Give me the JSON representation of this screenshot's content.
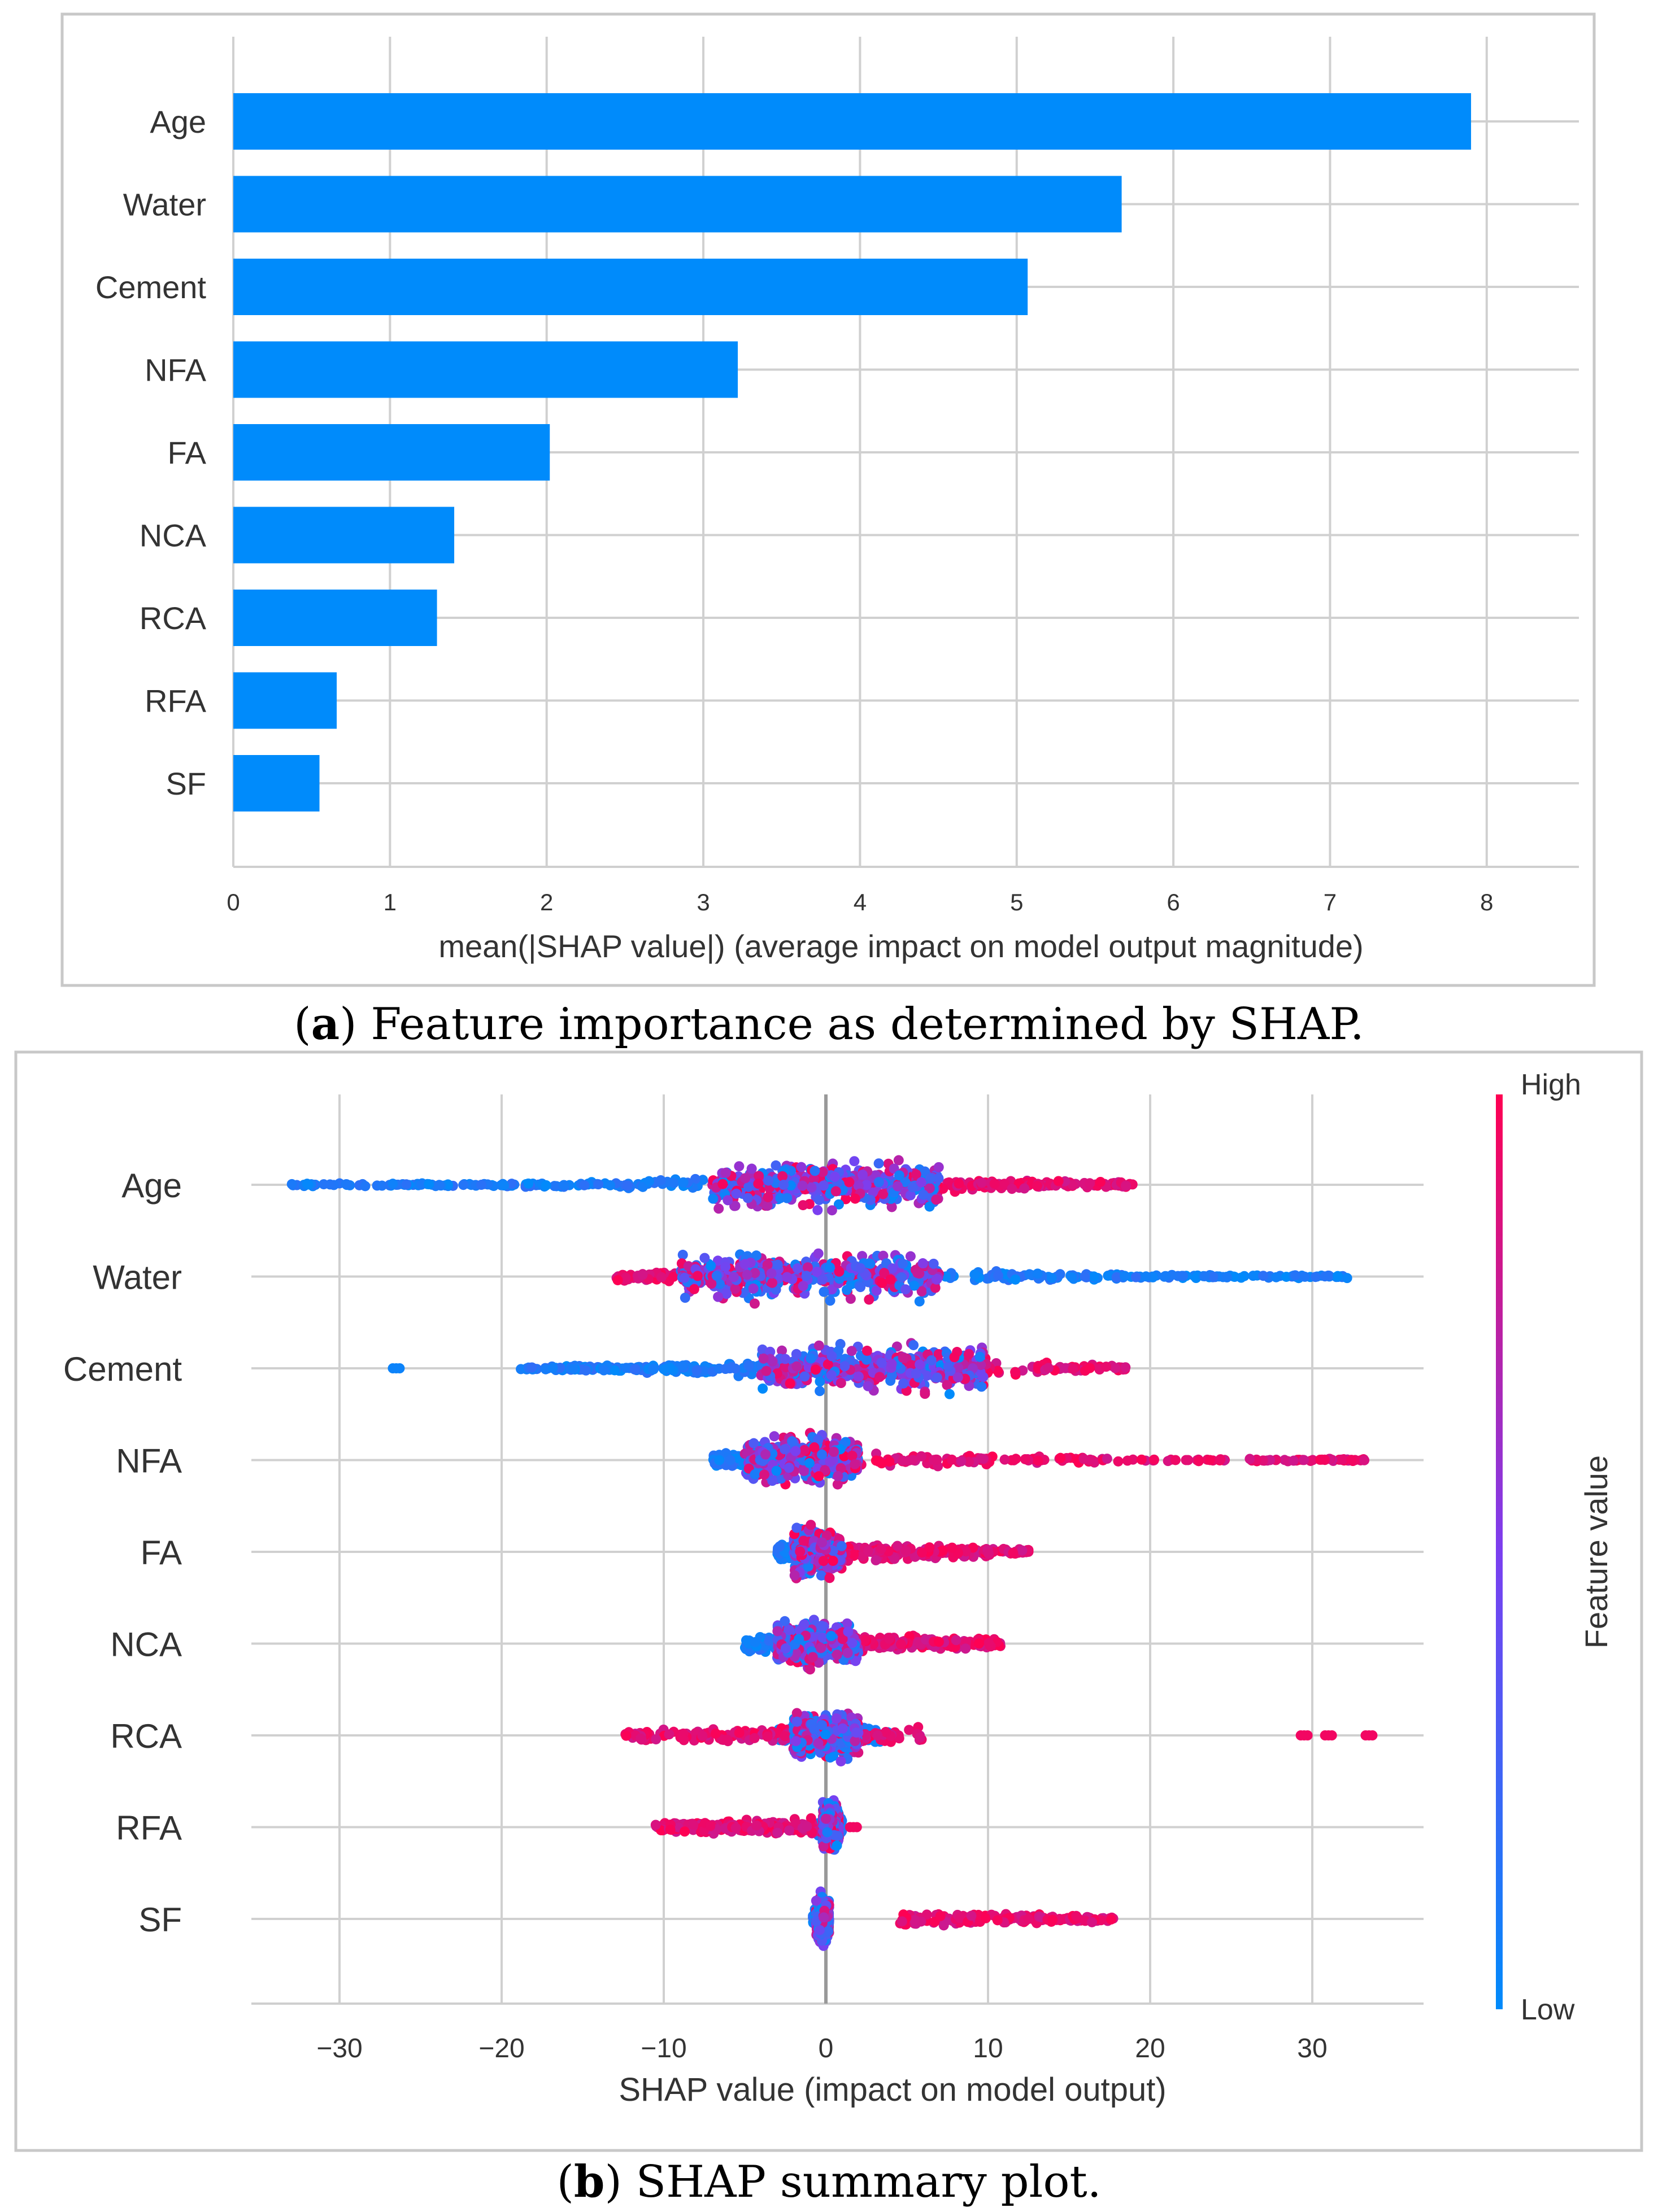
{
  "panel_a": {
    "caption_letter": "a",
    "caption_text": " Feature importance as determined by SHAP."
  },
  "panel_b": {
    "caption_letter": "b",
    "caption_text": " SHAP summary plot."
  },
  "colors": {
    "bar": "#008bfb",
    "low": "#008bfb",
    "high": "#ff0052",
    "grid": "#d0d0d0",
    "frame": "#c8c8c8"
  },
  "chart_data": [
    {
      "type": "bar",
      "orientation": "horizontal",
      "title": "",
      "categories": [
        "Age",
        "Water",
        "Cement",
        "NFA",
        "FA",
        "NCA",
        "RCA",
        "RFA",
        "SF"
      ],
      "values": [
        7.9,
        5.67,
        5.07,
        3.22,
        2.02,
        1.41,
        1.3,
        0.66,
        0.55
      ],
      "xlabel": "mean(|SHAP value|) (average impact on model output magnitude)",
      "ylabel": "",
      "xlim": [
        0,
        8.3
      ],
      "xticks": [
        "0",
        "1",
        "2",
        "3",
        "4",
        "5",
        "6",
        "7",
        "8"
      ],
      "grid": true
    },
    {
      "type": "scatter",
      "subtype": "beeswarm",
      "title": "",
      "categories": [
        "Age",
        "Water",
        "Cement",
        "NFA",
        "FA",
        "NCA",
        "RCA",
        "RFA",
        "SF"
      ],
      "xlabel": "SHAP value (impact on model output)",
      "xlim": [
        -36,
        37
      ],
      "xticks": [
        "−30",
        "−20",
        "−10",
        "0",
        "10",
        "20",
        "30"
      ],
      "colorbar": {
        "label": "Feature value",
        "high_label": "High",
        "low_label": "Low"
      },
      "series": [
        {
          "name": "Age",
          "low_range": [
            -33,
            -2
          ],
          "high_range": [
            2,
            19
          ],
          "core": [
            -7,
            7
          ],
          "outliers": []
        },
        {
          "name": "Water",
          "low_range": [
            4,
            32.5
          ],
          "high_range": [
            -13,
            4
          ],
          "core": [
            -9,
            7
          ],
          "outliers": []
        },
        {
          "name": "Cement",
          "low_range": [
            -19,
            -3
          ],
          "high_range": [
            -3,
            18.5
          ],
          "core": [
            -4,
            10
          ],
          "outliers": [
            -26.5
          ]
        },
        {
          "name": "NFA",
          "low_range": [
            -7,
            0
          ],
          "high_range": [
            0,
            33.5
          ],
          "core": [
            -5,
            2
          ],
          "outliers": []
        },
        {
          "name": "FA",
          "low_range": [
            -3,
            0
          ],
          "high_range": [
            0,
            12.5
          ],
          "core": [
            -2,
            1
          ],
          "outliers": []
        },
        {
          "name": "NCA",
          "low_range": [
            -5,
            1
          ],
          "high_range": [
            0,
            11
          ],
          "core": [
            -3,
            2
          ],
          "outliers": []
        },
        {
          "name": "RCA",
          "low_range": [
            -3,
            4
          ],
          "high_range": [
            -12.5,
            6
          ],
          "core": [
            -2,
            2
          ],
          "outliers": [
            29.5,
            31,
            33.5
          ]
        },
        {
          "name": "RFA",
          "low_range": [
            -0.5,
            1
          ],
          "high_range": [
            -10.5,
            -0.5
          ],
          "core": [
            -0.2,
            0.8
          ],
          "outliers": [
            1.7
          ]
        },
        {
          "name": "SF",
          "low_range": [
            -0.8,
            0.2
          ],
          "high_range": [
            4.5,
            17.8
          ],
          "core": [
            -0.6,
            0.2
          ],
          "outliers": []
        }
      ]
    }
  ]
}
